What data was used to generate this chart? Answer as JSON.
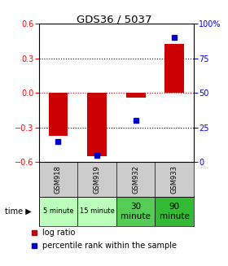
{
  "title": "GDS36 / 5037",
  "samples": [
    "GSM918",
    "GSM919",
    "GSM932",
    "GSM933"
  ],
  "time_labels": [
    "5 minute",
    "15 minute",
    "30\nminute",
    "90\nminute"
  ],
  "time_colors": [
    "#bbffbb",
    "#bbffbb",
    "#55cc55",
    "#33bb33"
  ],
  "log_ratios": [
    -0.37,
    -0.55,
    -0.04,
    0.43
  ],
  "percentile_ranks": [
    15,
    5,
    30,
    90
  ],
  "bar_color": "#cc0000",
  "dot_color": "#0000cc",
  "ylim_left": [
    -0.6,
    0.6
  ],
  "ylim_right": [
    0,
    100
  ],
  "yticks_left": [
    -0.6,
    -0.3,
    0,
    0.3,
    0.6
  ],
  "yticks_right": [
    0,
    25,
    50,
    75,
    100
  ],
  "grid_lines": [
    -0.3,
    0.0,
    0.3
  ],
  "grid_colors": [
    "#000000",
    "#cc0000",
    "#000000"
  ],
  "background_color": "#ffffff",
  "plot_bg": "#ffffff",
  "sample_bg": "#cccccc",
  "legend_log_ratio": "log ratio",
  "legend_percentile": "percentile rank within the sample"
}
